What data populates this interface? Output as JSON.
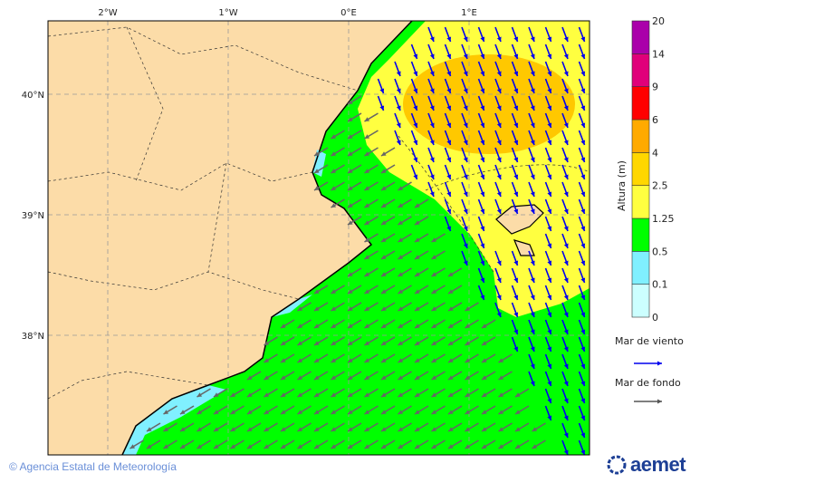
{
  "map": {
    "lon_labels": [
      "2°W",
      "1°W",
      "0°E",
      "1°E"
    ],
    "lat_labels": [
      "40°N",
      "39°N",
      "38°N"
    ]
  },
  "colorbar": {
    "title": "Altura (m)",
    "ticks": [
      "0",
      "0.1",
      "0.5",
      "1.25",
      "2.5",
      "4",
      "6",
      "9",
      "14",
      "20"
    ],
    "colors": [
      "#ccffff",
      "#80f0ff",
      "#00ff00",
      "#ffff40",
      "#ffd700",
      "#ffaa00",
      "#ff0000",
      "#e0007a",
      "#aa00aa"
    ]
  },
  "legend": {
    "wind_sea": {
      "label": "Mar de viento",
      "color": "#0000ee"
    },
    "swell": {
      "label": "Mar de fondo",
      "color": "#555555"
    }
  },
  "colors": {
    "land": "#fcdca8",
    "sea_green": "#00ff00",
    "sea_yellow": "#ffff40",
    "sea_orange": "#ffd000"
  },
  "footer": {
    "copyright": "© Agencia Estatal de Meteorología",
    "logo": "aemet"
  }
}
